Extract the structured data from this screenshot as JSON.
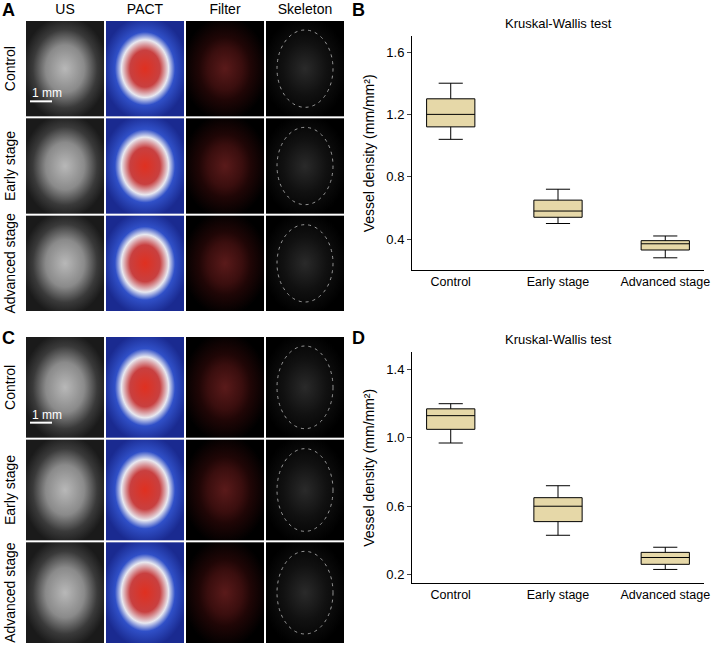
{
  "chart_data": [
    {
      "type": "box",
      "panel": "B",
      "title": "Kruskal-Wallis test",
      "ylabel": "Vessel density (mm/mm²)",
      "categories": [
        "Control",
        "Early stage",
        "Advanced stage"
      ],
      "lowerfence": [
        1.04,
        0.5,
        0.28
      ],
      "q1": [
        1.12,
        0.54,
        0.33
      ],
      "median": [
        1.2,
        0.58,
        0.37
      ],
      "q3": [
        1.3,
        0.65,
        0.39
      ],
      "upperfence": [
        1.4,
        0.72,
        0.42
      ],
      "color": "#e6d8a8",
      "ylim": [
        0.2,
        1.7
      ],
      "yticks": [
        0.4,
        0.8,
        1.2,
        1.6
      ],
      "grid": false
    },
    {
      "type": "box",
      "panel": "D",
      "title": "Kruskal-Wallis test",
      "ylabel": "Vessel density (mm/mm²)",
      "categories": [
        "Control",
        "Early stage",
        "Advanced stage"
      ],
      "lowerfence": [
        0.97,
        0.43,
        0.23
      ],
      "q1": [
        1.05,
        0.51,
        0.26
      ],
      "median": [
        1.13,
        0.6,
        0.3
      ],
      "q3": [
        1.17,
        0.65,
        0.33
      ],
      "upperfence": [
        1.2,
        0.72,
        0.36
      ],
      "color": "#e6d8a8",
      "ylim": [
        0.15,
        1.5
      ],
      "yticks": [
        0.2,
        0.6,
        {
          "value": 1,
          "label": "1.0"
        },
        1.4
      ],
      "grid": false
    }
  ],
  "image_panels": [
    {
      "panel": "A",
      "columns": [
        "US",
        "PACT",
        "Filter",
        "Skeleton"
      ],
      "rows": [
        "Control",
        "Early stage",
        "Advanced stage"
      ],
      "scale_bar": "1 mm"
    },
    {
      "panel": "C",
      "rows": [
        "Control",
        "Early stage",
        "Advanced stage"
      ],
      "scale_bar": "1 mm"
    }
  ]
}
